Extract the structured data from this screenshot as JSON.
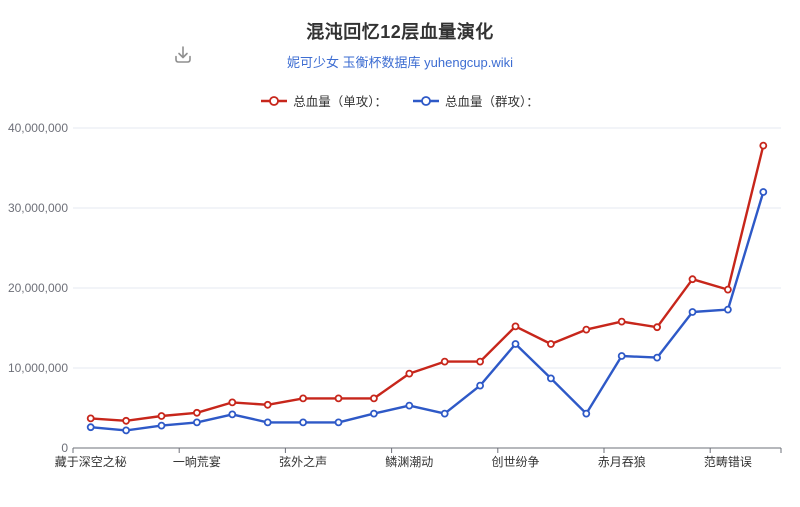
{
  "header": {
    "title": "混沌回忆12层血量演化",
    "subtitle": "妮可少女 玉衡杯数据库 yuhengcup.wiki",
    "toolbox_icon": "download-icon"
  },
  "legend": {
    "items": [
      {
        "label": "总血量（单攻）：",
        "color": "#c7261b"
      },
      {
        "label": "总血量（群攻）：",
        "color": "#2e59c7"
      }
    ]
  },
  "chart_data": {
    "type": "line",
    "title": "混沌回忆12层血量演化",
    "subtitle": "妮可少女 玉衡杯数据库 yuhengcup.wiki",
    "num_points": 20,
    "x_tick_labels": [
      "藏于深空之秘",
      "一晌荒宴",
      "弦外之声",
      "鳞渊潮动",
      "创世纷争",
      "赤月吞狼",
      "范畴错误"
    ],
    "x_label_indices": [
      0,
      3,
      6,
      9,
      12,
      15,
      18
    ],
    "series": [
      {
        "name": "总血量（单攻）",
        "color": "#c7261b",
        "values": [
          3700000,
          3400000,
          4000000,
          4400000,
          5700000,
          5400000,
          6200000,
          6200000,
          6200000,
          9300000,
          10800000,
          10800000,
          15200000,
          13000000,
          14800000,
          15800000,
          15100000,
          21100000,
          19800000,
          37800000
        ]
      },
      {
        "name": "总血量（群攻）",
        "color": "#2e59c7",
        "values": [
          2600000,
          2200000,
          2800000,
          3200000,
          4200000,
          3200000,
          3200000,
          3200000,
          4300000,
          5300000,
          4300000,
          7800000,
          13000000,
          8700000,
          4300000,
          11500000,
          11300000,
          17000000,
          17300000,
          32000000
        ]
      }
    ],
    "ylim": [
      0,
      40000000
    ],
    "y_ticks": {
      "values": [
        0,
        10000000,
        20000000,
        30000000,
        40000000
      ],
      "labels": [
        "0",
        "10,000,000",
        "20,000,000",
        "30,000,000",
        "40,000,000"
      ]
    },
    "grid": true,
    "legend_position": "top",
    "marker": "empty-circle"
  },
  "colors": {
    "title": "#333333",
    "subtitle_link": "#3d6dd2",
    "axis_line": "#6E7079",
    "y_label": "#6E7079",
    "x_label": "#333333",
    "gridline": "#E6EAF2",
    "toolbox_icon": "#8f8f8f",
    "background": "#ffffff"
  }
}
